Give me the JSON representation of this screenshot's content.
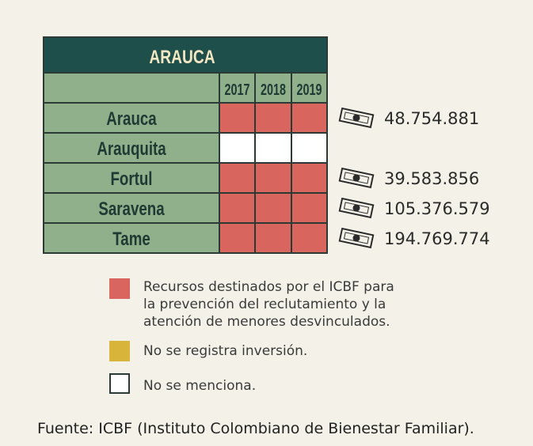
{
  "chart_data": {
    "type": "table",
    "title": "ARAUCA",
    "years": [
      "2017",
      "2018",
      "2019"
    ],
    "rows": [
      {
        "name": "Arauca",
        "cells": [
          "red",
          "red",
          "red"
        ],
        "amount": "48.754.881"
      },
      {
        "name": "Arauquita",
        "cells": [
          "white",
          "white",
          "white"
        ],
        "amount": ""
      },
      {
        "name": "Fortul",
        "cells": [
          "red",
          "red",
          "red"
        ],
        "amount": "39.583.856"
      },
      {
        "name": "Saravena",
        "cells": [
          "red",
          "red",
          "red"
        ],
        "amount": "105.376.579"
      },
      {
        "name": "Tame",
        "cells": [
          "red",
          "red",
          "red"
        ],
        "amount": "194.769.774"
      }
    ],
    "legend": [
      {
        "key": "red",
        "text": "Recursos destinados por el ICBF para\nla prevención del reclutamiento y la\natención de menores desvinculados."
      },
      {
        "key": "yellow",
        "text": "No se registra inversión."
      },
      {
        "key": "white",
        "text": "No se menciona."
      }
    ],
    "source": "Fuente: ICBF (Instituto Colombiano de Bienestar Familiar)."
  },
  "colors": {
    "background": "#f4f2e8",
    "header": "#1f4f4a",
    "row": "#8fb08a",
    "red": "#d9665e",
    "yellow": "#d9b43a",
    "white": "#ffffff",
    "border": "#2b3a35",
    "title_text": "#f3e6c3",
    "label_text": "#1f3a34"
  },
  "icons": {
    "amount": "money-bill-icon"
  }
}
